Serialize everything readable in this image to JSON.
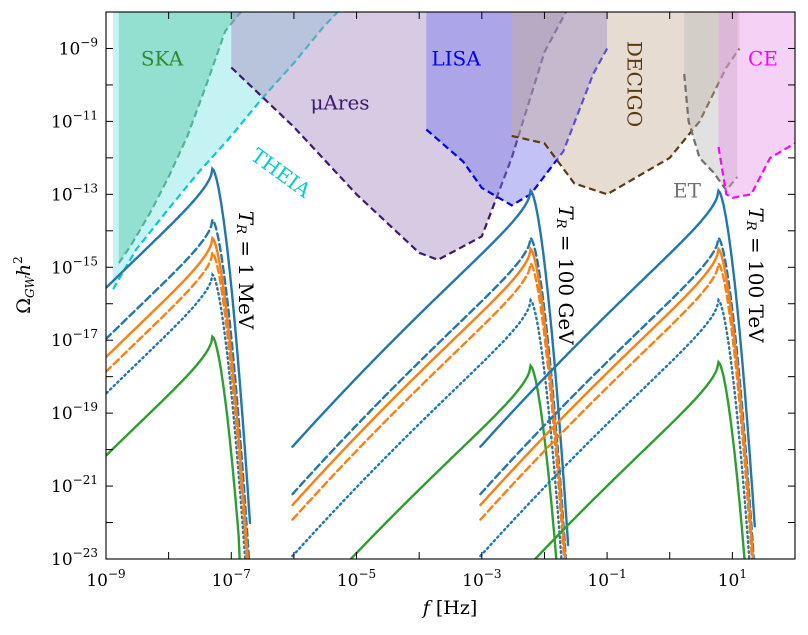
{
  "chart_data": {
    "type": "line",
    "xlabel": "f [Hz]",
    "ylabel": "Ω_GW h²",
    "xscale": "log",
    "yscale": "log",
    "xlim": [
      1e-09,
      100
    ],
    "ylim": [
      1e-23,
      1e-08
    ],
    "x_ticks": [
      "10^-9",
      "10^-7",
      "10^-5",
      "10^-3",
      "10^-1",
      "10^1"
    ],
    "y_ticks": [
      "10^-9",
      "10^-11",
      "10^-13",
      "10^-15",
      "10^-17",
      "10^-19",
      "10^-21",
      "10^-23"
    ],
    "grid": false,
    "detectors": [
      {
        "name": "SKA",
        "color": "#2e8b57",
        "label_color": "#2e8b2e",
        "fill": "#3cb371",
        "curve": [
          [
            1.6e-09,
            1.3e-15
          ],
          [
            2.5e-09,
            4e-15
          ],
          [
            5e-09,
            3e-14
          ],
          [
            1e-08,
            3e-13
          ],
          [
            2e-08,
            4e-12
          ],
          [
            4e-08,
            1e-10
          ],
          [
            8e-08,
            3e-09
          ],
          [
            2e-07,
            2e-08
          ]
        ]
      },
      {
        "name": "THEIA",
        "color": "#00ced1",
        "label_color": "#00ced1",
        "fill": "#7fe5e5",
        "curve": [
          [
            1.3e-09,
            2.5e-16
          ],
          [
            3e-09,
            3e-15
          ],
          [
            1e-08,
            4e-14
          ],
          [
            3e-08,
            4e-13
          ],
          [
            1e-07,
            4e-12
          ],
          [
            3e-07,
            4e-11
          ],
          [
            1e-06,
            4e-10
          ],
          [
            3e-06,
            4e-09
          ],
          [
            5e-06,
            1e-08
          ]
        ]
      },
      {
        "name": "μAres",
        "color": "#3d1a6e",
        "label_color": "#3d1a6e",
        "fill": "#a68cc0",
        "curve": [
          [
            1e-07,
            3e-10
          ],
          [
            1e-06,
            7e-12
          ],
          [
            1e-05,
            1e-13
          ],
          [
            0.0001,
            2.5e-15
          ],
          [
            0.0002,
            1.6e-15
          ],
          [
            0.001,
            7e-15
          ],
          [
            0.003,
            1e-12
          ],
          [
            0.01,
            8e-10
          ],
          [
            0.022,
            1e-08
          ]
        ]
      },
      {
        "name": "LISA",
        "color": "#0000ff",
        "label_color": "#0000ff",
        "fill": "#7777ee",
        "curve": [
          [
            0.00013,
            6e-12
          ],
          [
            0.0005,
            8e-13
          ],
          [
            0.001,
            1.5e-13
          ],
          [
            0.003,
            5e-14
          ],
          [
            0.006,
            1e-13
          ],
          [
            0.02,
            1.5e-12
          ],
          [
            0.06,
            2e-10
          ],
          [
            0.1,
            1e-09
          ]
        ]
      },
      {
        "name": "DECIGO",
        "color": "#5c3a10",
        "label_color": "#5c3a10",
        "fill": "#c9b29a",
        "curve": [
          [
            0.003,
            4e-12
          ],
          [
            0.01,
            2.5e-12
          ],
          [
            0.03,
            2e-13
          ],
          [
            0.1,
            1e-13
          ],
          [
            0.3,
            3e-13
          ],
          [
            1,
            1e-12
          ],
          [
            3,
            1e-11
          ],
          [
            8,
            3e-10
          ],
          [
            13.0,
            1e-09
          ]
        ]
      },
      {
        "name": "ET",
        "color": "#707070",
        "label_color": "#707070",
        "fill": "#bdbdbd",
        "curve": [
          [
            1.7,
            2e-10
          ],
          [
            2,
            1e-11
          ],
          [
            3,
            1e-12
          ],
          [
            5,
            4e-13
          ],
          [
            8,
            1.3e-13
          ],
          [
            12.0,
            3e-13
          ]
        ]
      },
      {
        "name": "CE",
        "color": "#ff00ff",
        "label_color": "#ff00ff",
        "fill": "#e89ce8",
        "curve": [
          [
            6,
            2e-12
          ],
          [
            8,
            1e-13
          ],
          [
            10.0,
            8e-14
          ],
          [
            20.0,
            1e-13
          ],
          [
            40.0,
            1e-12
          ],
          [
            100.0,
            2.5e-12
          ]
        ]
      }
    ],
    "annotations": [
      {
        "text": "T_R = 1 MeV",
        "T_R": "1 MeV"
      },
      {
        "text": "T_R = 100 GeV",
        "T_R": "100 GeV"
      },
      {
        "text": "T_R = 100 TeV",
        "T_R": "100 TeV"
      }
    ],
    "spectra_groups": [
      {
        "T_R": "1 MeV",
        "peak_f": 5e-08,
        "ir_slope_ref": -9,
        "series": [
          {
            "color": "#1f77b4",
            "style": "solid",
            "peak_logy": -12.3,
            "floor_logy": -22.9
          },
          {
            "color": "#1f77b4",
            "style": "dashed",
            "peak_logy": -13.7,
            "floor_logy": -23.0
          },
          {
            "color": "#1f77b4",
            "style": "dotted",
            "peak_logy": -15.2,
            "floor_logy": -23.0
          },
          {
            "color": "#ff7f0e",
            "style": "solid",
            "peak_logy": -14.2,
            "floor_logy": -23.0
          },
          {
            "color": "#ff7f0e",
            "style": "dashed",
            "peak_logy": -14.6,
            "floor_logy": -23.0
          },
          {
            "color": "#2ca02c",
            "style": "solid",
            "peak_logy": -16.9,
            "floor_logy": -22.8
          }
        ]
      },
      {
        "T_R": "100 GeV",
        "peak_f": 0.006,
        "series": [
          {
            "color": "#1f77b4",
            "style": "solid",
            "peak_logy": -12.9
          },
          {
            "color": "#1f77b4",
            "style": "dashed",
            "peak_logy": -14.2
          },
          {
            "color": "#1f77b4",
            "style": "dotted",
            "peak_logy": -15.9
          },
          {
            "color": "#ff7f0e",
            "style": "solid",
            "peak_logy": -14.5
          },
          {
            "color": "#ff7f0e",
            "style": "dashed",
            "peak_logy": -14.9
          },
          {
            "color": "#2ca02c",
            "style": "solid",
            "peak_logy": -17.7
          }
        ]
      },
      {
        "T_R": "100 TeV",
        "peak_f": 6,
        "series": [
          {
            "color": "#1f77b4",
            "style": "solid",
            "peak_logy": -12.9
          },
          {
            "color": "#1f77b4",
            "style": "dashed",
            "peak_logy": -14.2
          },
          {
            "color": "#1f77b4",
            "style": "dotted",
            "peak_logy": -15.9
          },
          {
            "color": "#ff7f0e",
            "style": "solid",
            "peak_logy": -14.5
          },
          {
            "color": "#ff7f0e",
            "style": "dashed",
            "peak_logy": -14.9
          },
          {
            "color": "#2ca02c",
            "style": "solid",
            "peak_logy": -17.6
          }
        ]
      }
    ]
  }
}
